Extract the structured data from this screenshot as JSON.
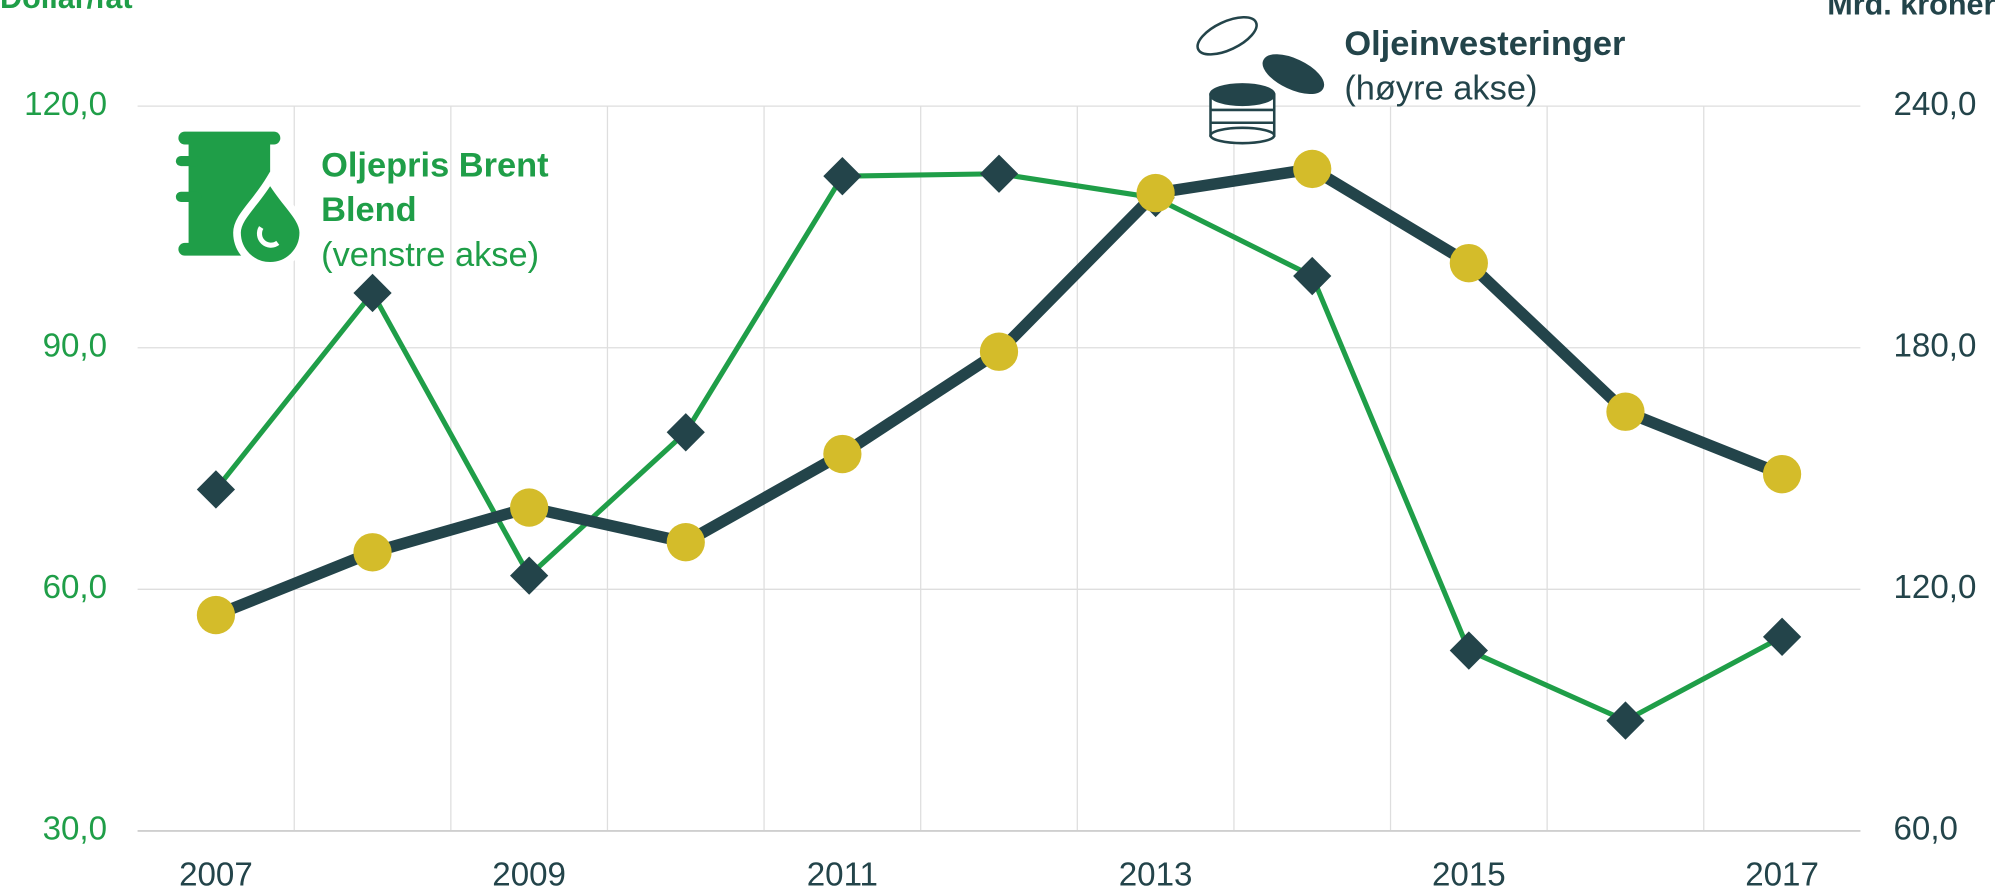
{
  "chart_data": {
    "type": "line",
    "y_label": "Dollar/fat",
    "y2_label": "Mrd. kroner",
    "categories": [
      "2007",
      null,
      "2009",
      null,
      "2011",
      null,
      "2013",
      null,
      "2015",
      null,
      "2017"
    ],
    "series": [
      {
        "name": "Oljepris Brent Blend",
        "note": "(venstre akse)",
        "color": "#1f9e48",
        "marker": "diamond",
        "marker_color": "#23444a",
        "axis": "y",
        "values": [
          72.4,
          96.8,
          61.7,
          79.5,
          111.3,
          111.6,
          108.6,
          98.9,
          52.4,
          43.7,
          54.1
        ]
      },
      {
        "name": "Oljeinvesteringer",
        "note": "(høyre akse)",
        "color": "#23444a",
        "marker": "circle",
        "marker_color": "#d4bc2a",
        "axis": "y2",
        "values": [
          113.6,
          129.2,
          140.3,
          131.7,
          153.6,
          179.0,
          218.4,
          224.4,
          201.0,
          164.1,
          148.6
        ]
      }
    ],
    "ylim": [
      30,
      120
    ],
    "yticks": [
      {
        "value": 30,
        "label": "30,0"
      },
      {
        "value": 60,
        "label": "60,0"
      },
      {
        "value": 90,
        "label": "90,0"
      },
      {
        "value": 120,
        "label": "120,0"
      }
    ],
    "y2lim": [
      60,
      240
    ],
    "y2ticks": [
      {
        "value": 60,
        "label": "60,0"
      },
      {
        "value": 120,
        "label": "120,0"
      },
      {
        "value": 180,
        "label": "180,0"
      },
      {
        "value": 240,
        "label": "240,0"
      }
    ],
    "grid": true
  }
}
